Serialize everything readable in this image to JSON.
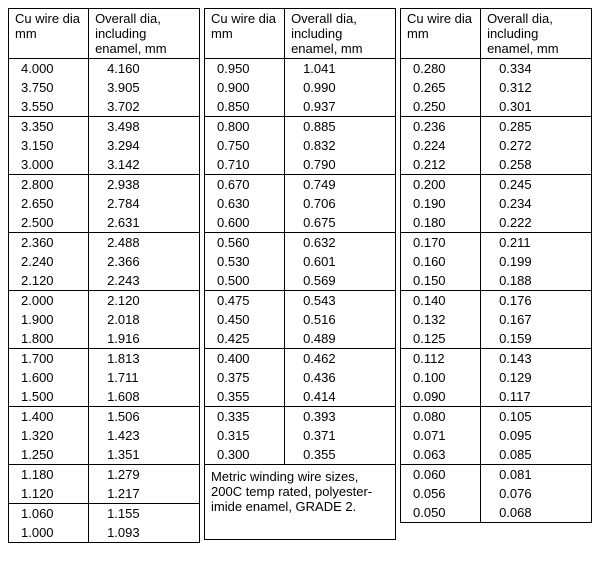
{
  "headers": {
    "col1": "Cu wire dia mm",
    "col2": "Overall dia, including enamel, mm"
  },
  "note": "Metric winding wire sizes, 200C temp rated, polyester-imide enamel, GRADE 2.",
  "table1_groups": [
    [
      [
        "4.000",
        "4.160"
      ],
      [
        "3.750",
        "3.905"
      ],
      [
        "3.550",
        "3.702"
      ]
    ],
    [
      [
        "3.350",
        "3.498"
      ],
      [
        "3.150",
        "3.294"
      ],
      [
        "3.000",
        "3.142"
      ]
    ],
    [
      [
        "2.800",
        "2.938"
      ],
      [
        "2.650",
        "2.784"
      ],
      [
        "2.500",
        "2.631"
      ]
    ],
    [
      [
        "2.360",
        "2.488"
      ],
      [
        "2.240",
        "2.366"
      ],
      [
        "2.120",
        "2.243"
      ]
    ],
    [
      [
        "2.000",
        "2.120"
      ],
      [
        "1.900",
        "2.018"
      ],
      [
        "1.800",
        "1.916"
      ]
    ],
    [
      [
        "1.700",
        "1.813"
      ],
      [
        "1.600",
        "1.711"
      ],
      [
        "1.500",
        "1.608"
      ]
    ],
    [
      [
        "1.400",
        "1.506"
      ],
      [
        "1.320",
        "1.423"
      ],
      [
        "1.250",
        "1.351"
      ]
    ],
    [
      [
        "1.180",
        "1.279"
      ],
      [
        "1.120",
        "1.217"
      ]
    ],
    [
      [
        "1.060",
        "1.155"
      ],
      [
        "1.000",
        "1.093"
      ]
    ]
  ],
  "table2_groups": [
    [
      [
        "0.950",
        "1.041"
      ],
      [
        "0.900",
        "0.990"
      ],
      [
        "0.850",
        "0.937"
      ]
    ],
    [
      [
        "0.800",
        "0.885"
      ],
      [
        "0.750",
        "0.832"
      ],
      [
        "0.710",
        "0.790"
      ]
    ],
    [
      [
        "0.670",
        "0.749"
      ],
      [
        "0.630",
        "0.706"
      ],
      [
        "0.600",
        "0.675"
      ]
    ],
    [
      [
        "0.560",
        "0.632"
      ],
      [
        "0.530",
        "0.601"
      ],
      [
        "0.500",
        "0.569"
      ]
    ],
    [
      [
        "0.475",
        "0.543"
      ],
      [
        "0.450",
        "0.516"
      ],
      [
        "0.425",
        "0.489"
      ]
    ],
    [
      [
        "0.400",
        "0.462"
      ],
      [
        "0.375",
        "0.436"
      ],
      [
        "0.355",
        "0.414"
      ]
    ],
    [
      [
        "0.335",
        "0.393"
      ],
      [
        "0.315",
        "0.371"
      ],
      [
        "0.300",
        "0.355"
      ]
    ]
  ],
  "table2_note_rowspan": 4,
  "table3_groups": [
    [
      [
        "0.280",
        "0.334"
      ],
      [
        "0.265",
        "0.312"
      ],
      [
        "0.250",
        "0.301"
      ]
    ],
    [
      [
        "0.236",
        "0.285"
      ],
      [
        "0.224",
        "0.272"
      ],
      [
        "0.212",
        "0.258"
      ]
    ],
    [
      [
        "0.200",
        "0.245"
      ],
      [
        "0.190",
        "0.234"
      ],
      [
        "0.180",
        "0.222"
      ]
    ],
    [
      [
        "0.170",
        "0.211"
      ],
      [
        "0.160",
        "0.199"
      ],
      [
        "0.150",
        "0.188"
      ]
    ],
    [
      [
        "0.140",
        "0.176"
      ],
      [
        "0.132",
        "0.167"
      ],
      [
        "0.125",
        "0.159"
      ]
    ],
    [
      [
        "0.112",
        "0.143"
      ],
      [
        "0.100",
        "0.129"
      ],
      [
        "0.090",
        "0.117"
      ]
    ],
    [
      [
        "0.080",
        "0.105"
      ],
      [
        "0.071",
        "0.095"
      ],
      [
        "0.063",
        "0.085"
      ]
    ],
    [
      [
        "0.060",
        "0.081"
      ],
      [
        "0.056",
        "0.076"
      ],
      [
        "0.050",
        "0.068"
      ]
    ]
  ]
}
